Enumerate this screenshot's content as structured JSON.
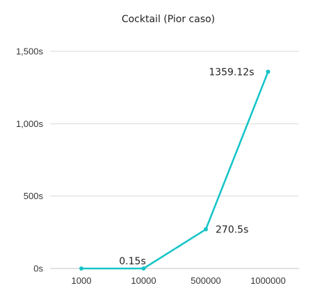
{
  "chart_data": {
    "type": "line",
    "title": "Cocktail (Pior caso)",
    "xlabel": "",
    "ylabel": "",
    "categories": [
      "1000",
      "10000",
      "500000",
      "1000000"
    ],
    "series": [
      {
        "values": [
          0.002,
          0.15,
          270.5,
          1359.12
        ],
        "data_labels": [
          "",
          "0.15s",
          "270.5s",
          "1359.12s"
        ],
        "color": "#16c4c8"
      }
    ],
    "ylim": [
      0,
      1500
    ],
    "y_ticks": [
      0,
      500,
      1000,
      1500
    ],
    "y_tick_labels": [
      "0s",
      "500s",
      "1,000s",
      "1,500s"
    ],
    "grid": true,
    "legend": "none"
  }
}
